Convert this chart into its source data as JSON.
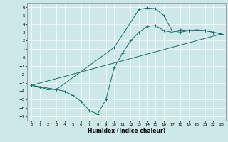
{
  "title": "",
  "xlabel": "Humidex (Indice chaleur)",
  "xlim": [
    -0.5,
    23.5
  ],
  "ylim": [
    -7.5,
    6.5
  ],
  "xticks": [
    0,
    1,
    2,
    3,
    4,
    5,
    6,
    7,
    8,
    9,
    10,
    11,
    12,
    13,
    14,
    15,
    16,
    17,
    18,
    19,
    20,
    21,
    22,
    23
  ],
  "yticks": [
    6,
    5,
    4,
    3,
    2,
    1,
    0,
    -1,
    -2,
    -3,
    -4,
    -5,
    -6,
    -7
  ],
  "bg_color": "#cce8e8",
  "line_color": "#1a6b6b",
  "line1_x": [
    0,
    1,
    2,
    3,
    4,
    5,
    6,
    7,
    8,
    9,
    10,
    11,
    12,
    13,
    14,
    15,
    16,
    17,
    18,
    19,
    20,
    21,
    22,
    23
  ],
  "line1_y": [
    -3.3,
    -3.5,
    -3.8,
    -3.8,
    -4.0,
    -4.5,
    -5.2,
    -6.3,
    -6.7,
    -5.0,
    -1.2,
    0.5,
    2.0,
    3.0,
    3.7,
    3.8,
    3.2,
    3.0,
    3.3,
    3.2,
    3.2,
    3.2,
    3.0,
    2.8
  ],
  "line2_x": [
    0,
    3,
    10,
    13,
    14,
    15,
    16,
    17,
    18,
    19,
    20,
    21,
    22,
    23
  ],
  "line2_y": [
    -3.3,
    -3.8,
    1.2,
    5.7,
    5.9,
    5.8,
    5.0,
    3.2,
    3.0,
    3.2,
    3.3,
    3.2,
    3.0,
    2.8
  ],
  "line3_x": [
    0,
    23
  ],
  "line3_y": [
    -3.3,
    2.8
  ]
}
